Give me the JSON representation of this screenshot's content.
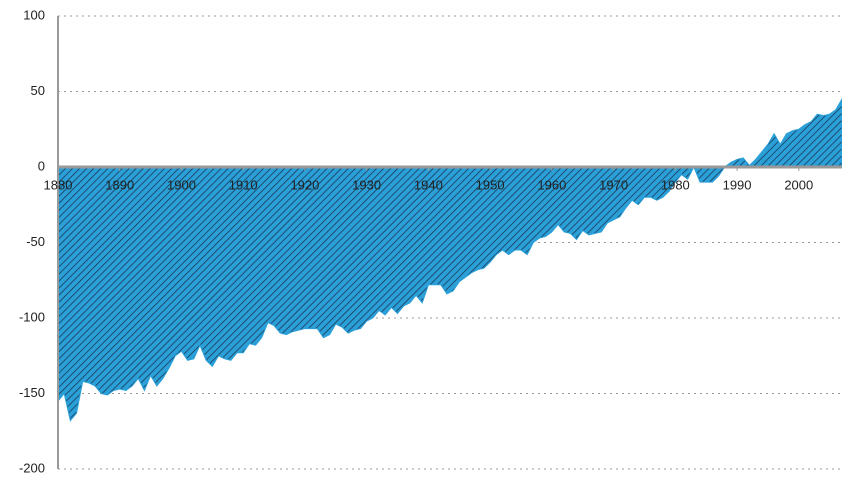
{
  "chart_data": {
    "type": "area",
    "x": [
      1880,
      1881,
      1882,
      1883,
      1884,
      1885,
      1886,
      1887,
      1888,
      1889,
      1890,
      1891,
      1892,
      1893,
      1894,
      1895,
      1896,
      1897,
      1898,
      1899,
      1900,
      1901,
      1902,
      1903,
      1904,
      1905,
      1906,
      1907,
      1908,
      1909,
      1910,
      1911,
      1912,
      1913,
      1914,
      1915,
      1916,
      1917,
      1918,
      1919,
      1920,
      1921,
      1922,
      1923,
      1924,
      1925,
      1926,
      1927,
      1928,
      1929,
      1930,
      1931,
      1932,
      1933,
      1934,
      1935,
      1936,
      1937,
      1938,
      1939,
      1940,
      1941,
      1942,
      1943,
      1944,
      1945,
      1946,
      1947,
      1948,
      1949,
      1950,
      1951,
      1952,
      1953,
      1954,
      1955,
      1956,
      1957,
      1958,
      1959,
      1960,
      1961,
      1962,
      1963,
      1964,
      1965,
      1966,
      1967,
      1968,
      1969,
      1970,
      1971,
      1972,
      1973,
      1974,
      1975,
      1976,
      1977,
      1978,
      1979,
      1980,
      1981,
      1982,
      1983,
      1984,
      1985,
      1986,
      1987,
      1988,
      1989,
      1990,
      1991,
      1992,
      1993,
      1994,
      1995,
      1996,
      1997,
      1998,
      1999,
      2000,
      2001,
      2002,
      2003,
      2004,
      2005,
      2006,
      2007
    ],
    "values": [
      -155,
      -150,
      -168,
      -163,
      -142,
      -143,
      -145,
      -150,
      -151,
      -148,
      -147,
      -148,
      -145,
      -140,
      -148,
      -138,
      -145,
      -140,
      -133,
      -125,
      -122,
      -128,
      -127,
      -118,
      -128,
      -132,
      -125,
      -127,
      -128,
      -123,
      -123,
      -117,
      -118,
      -113,
      -103,
      -105,
      -110,
      -111,
      -109,
      -108,
      -107,
      -107,
      -107,
      -113,
      -111,
      -104,
      -106,
      -110,
      -108,
      -107,
      -102,
      -100,
      -95,
      -98,
      -93,
      -97,
      -92,
      -90,
      -85,
      -90,
      -78,
      -78,
      -78,
      -84,
      -82,
      -76,
      -73,
      -70,
      -68,
      -67,
      -63,
      -58,
      -55,
      -58,
      -55,
      -55,
      -58,
      -50,
      -47,
      -46,
      -43,
      -38,
      -43,
      -44,
      -48,
      -42,
      -45,
      -44,
      -43,
      -37,
      -35,
      -33,
      -27,
      -22,
      -25,
      -20,
      -20,
      -22,
      -20,
      -16,
      -10,
      -5,
      -8,
      0,
      -10,
      -10,
      -10,
      -6,
      0,
      3,
      5,
      6,
      1,
      5,
      10,
      15,
      22,
      15,
      22,
      24,
      25,
      28,
      30,
      35,
      34,
      35,
      38,
      45
    ],
    "color": "#2a9fd8",
    "xlim": [
      1880,
      2007
    ],
    "xticks": [
      1880,
      1890,
      1900,
      1910,
      1920,
      1930,
      1940,
      1950,
      1960,
      1970,
      1980,
      1990,
      2000
    ],
    "ylim": [
      -200,
      100
    ],
    "yticks": [
      -200,
      -150,
      -100,
      -50,
      0,
      50,
      100
    ],
    "grid": true
  }
}
